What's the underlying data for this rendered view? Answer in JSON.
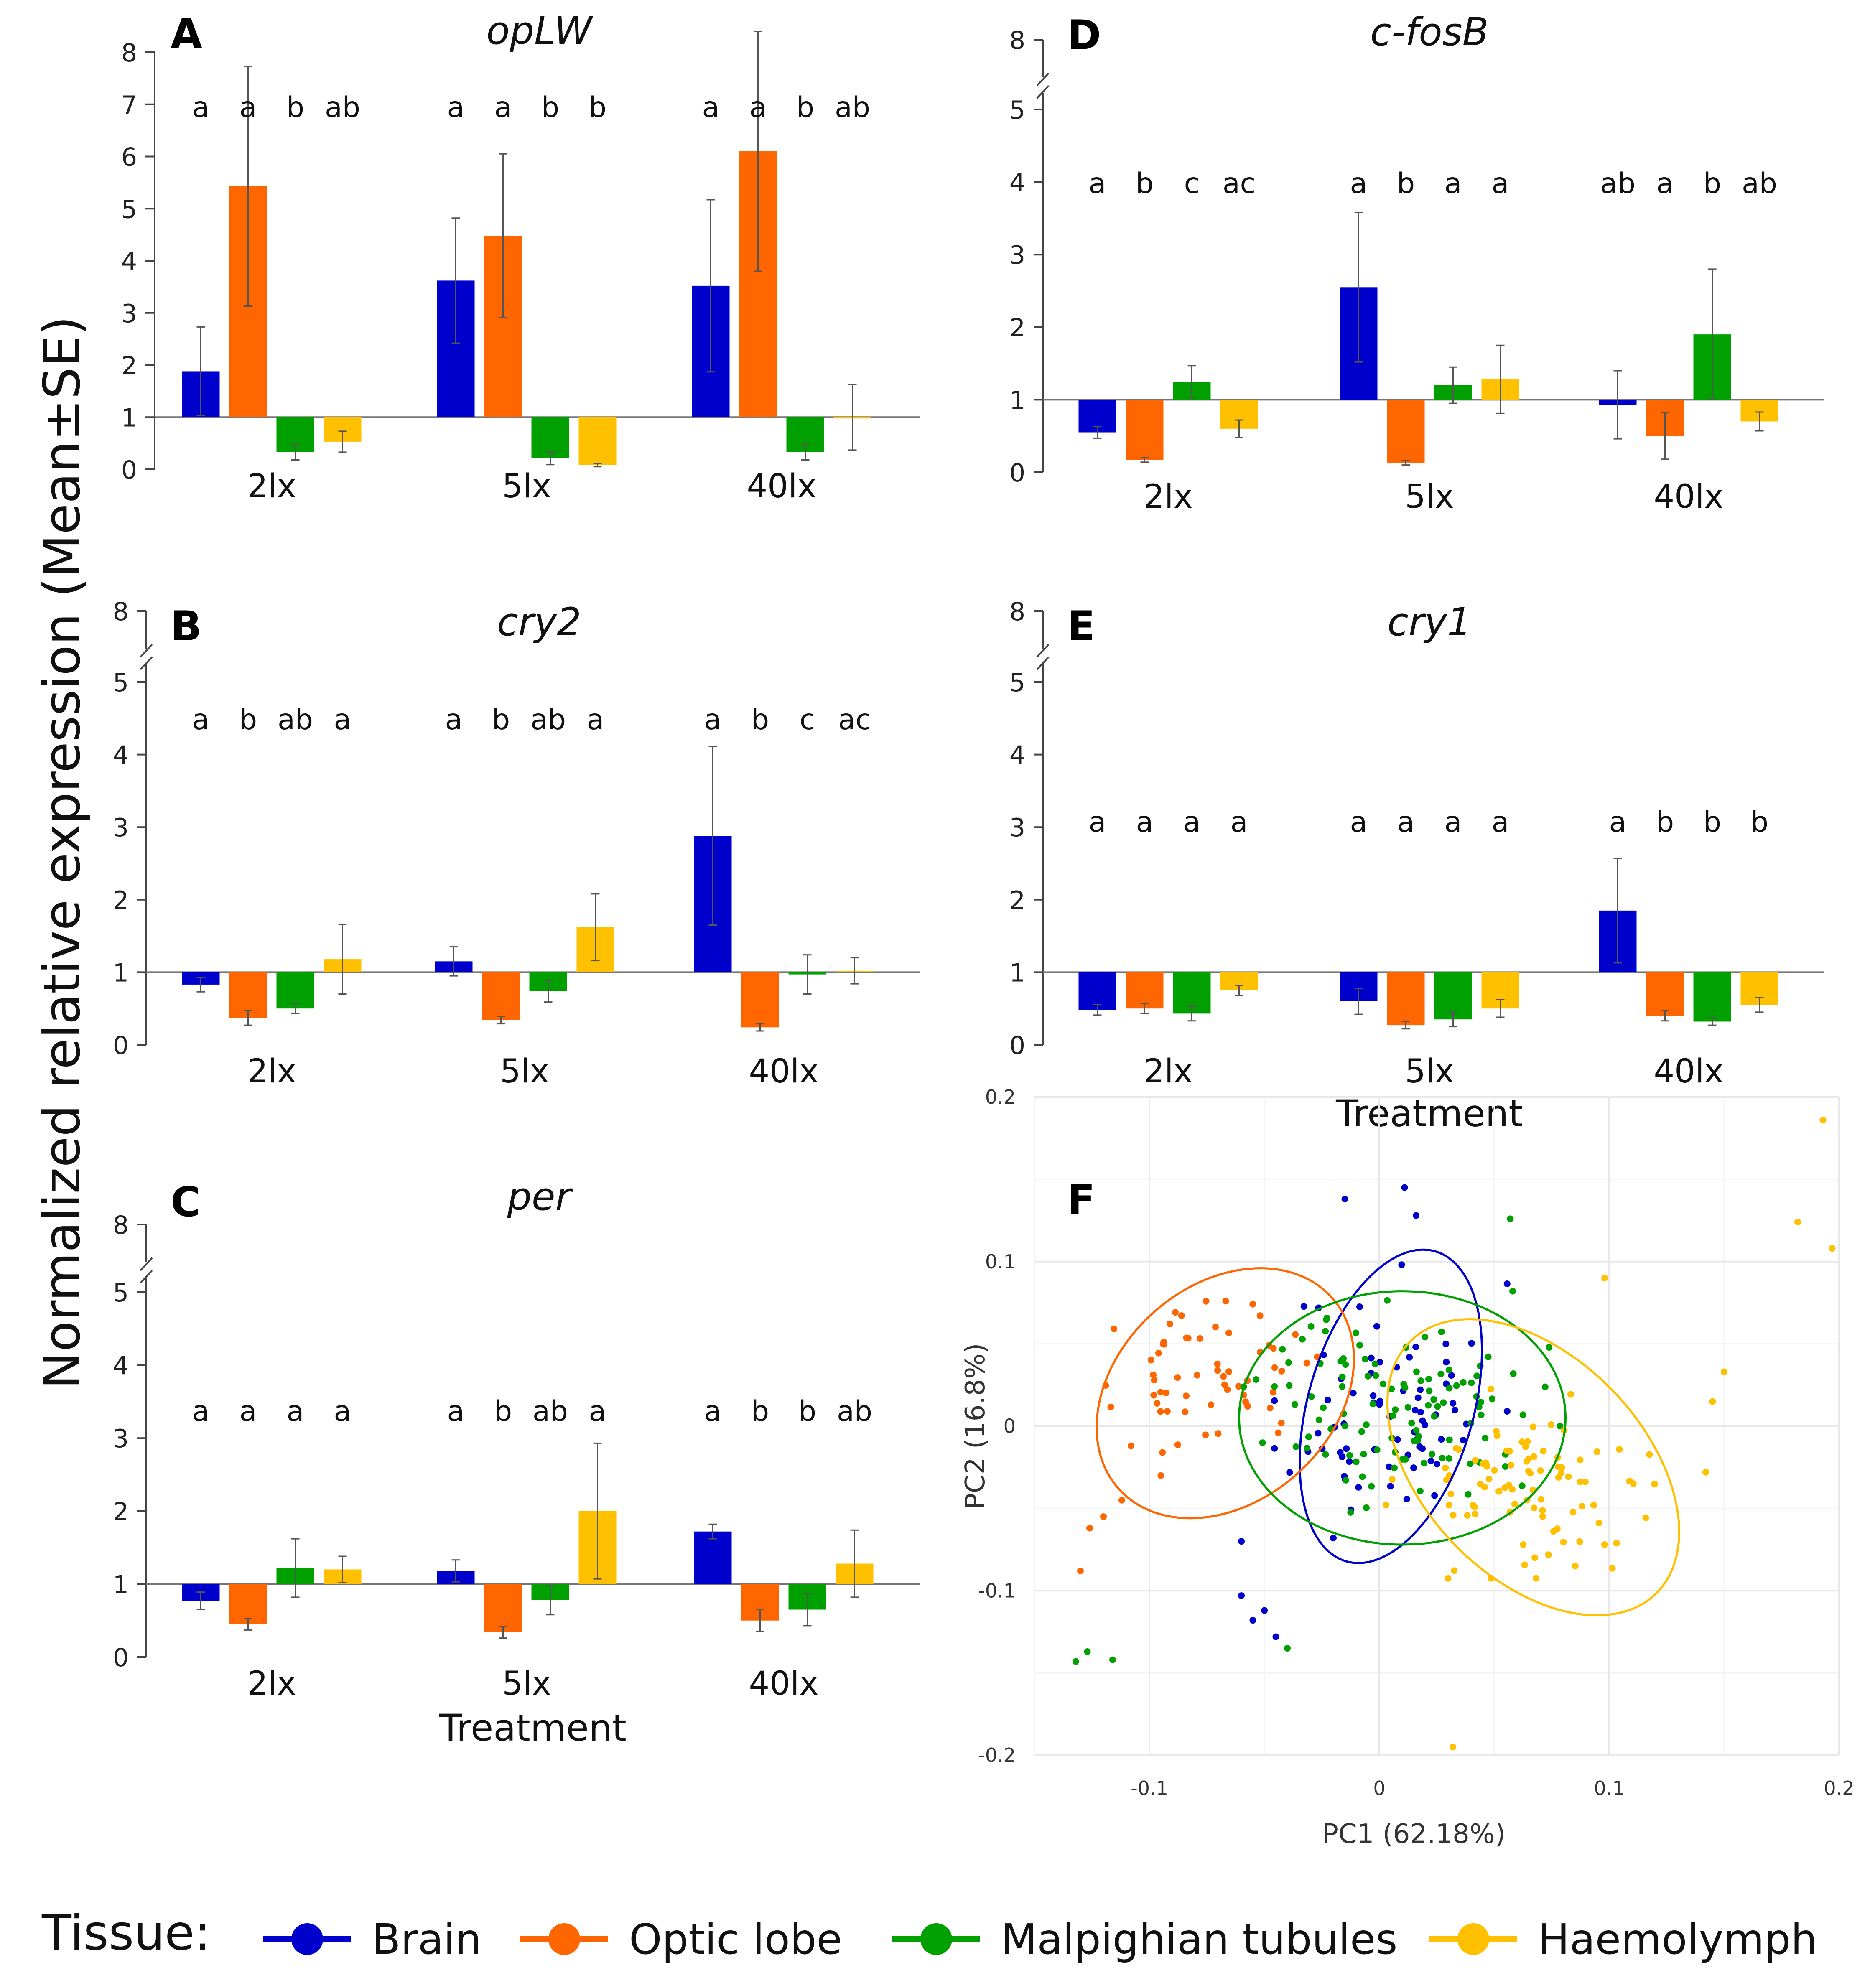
{
  "colors": {
    "Brain": "#0000cc",
    "Optic lobe": "#ff6600",
    "Malpighian tubules": "#00a000",
    "Haemolymph": "#ffc000"
  },
  "y_axis_title": "Normalized relative expression (Mean±SE)",
  "x_axis_title": "Treatment",
  "legend": {
    "title": "Tissue:",
    "items": [
      "Brain",
      "Optic lobe",
      "Malpighian tubules",
      "Haemolymph"
    ]
  },
  "chart_data": [
    {
      "type": "bar",
      "panel": "A",
      "gene": "opLW",
      "categories": [
        "2lx",
        "5lx",
        "40lx"
      ],
      "baseline": 1,
      "ylim": [
        0,
        8
      ],
      "yticks": [
        0,
        1,
        2,
        3,
        4,
        5,
        6,
        7,
        8
      ],
      "axis_break": false,
      "series": [
        {
          "name": "Brain",
          "values": [
            1.88,
            3.62,
            3.52
          ],
          "err": [
            0.85,
            1.2,
            1.65
          ]
        },
        {
          "name": "Optic lobe",
          "values": [
            5.43,
            4.48,
            6.1
          ],
          "err": [
            2.3,
            1.57,
            2.3
          ]
        },
        {
          "name": "Malpighian tubules",
          "values": [
            0.33,
            0.21,
            0.33
          ],
          "err": [
            0.15,
            0.12,
            0.15
          ]
        },
        {
          "name": "Haemolymph",
          "values": [
            0.53,
            0.08,
            1.0
          ],
          "err": [
            0.2,
            0.03,
            0.63
          ]
        }
      ],
      "letters": [
        [
          "a",
          "a",
          "b",
          "ab"
        ],
        [
          "a",
          "a",
          "b",
          "b"
        ],
        [
          "a",
          "a",
          "b",
          "ab"
        ]
      ]
    },
    {
      "type": "bar",
      "panel": "B",
      "gene": "cry2",
      "categories": [
        "2lx",
        "5lx",
        "40lx"
      ],
      "baseline": 1,
      "ylim": [
        0,
        5
      ],
      "yticks": [
        0,
        1,
        2,
        3,
        4,
        5
      ],
      "axis_break": true,
      "break_label": "8",
      "series": [
        {
          "name": "Brain",
          "values": [
            0.83,
            1.15,
            2.88
          ],
          "err": [
            0.1,
            0.2,
            1.23
          ]
        },
        {
          "name": "Optic lobe",
          "values": [
            0.37,
            0.34,
            0.24
          ],
          "err": [
            0.1,
            0.05,
            0.05
          ]
        },
        {
          "name": "Malpighian tubules",
          "values": [
            0.5,
            0.74,
            0.97
          ],
          "err": [
            0.07,
            0.15,
            0.27
          ]
        },
        {
          "name": "Haemolymph",
          "values": [
            1.18,
            1.62,
            1.02
          ],
          "err": [
            0.48,
            0.46,
            0.18
          ]
        }
      ],
      "letters": [
        [
          "a",
          "b",
          "ab",
          "a"
        ],
        [
          "a",
          "b",
          "ab",
          "a"
        ],
        [
          "a",
          "b",
          "c",
          "ac"
        ]
      ]
    },
    {
      "type": "bar",
      "panel": "C",
      "gene": "per",
      "categories": [
        "2lx",
        "5lx",
        "40lx"
      ],
      "baseline": 1,
      "ylim": [
        0,
        5
      ],
      "yticks": [
        0,
        1,
        2,
        3,
        4,
        5
      ],
      "axis_break": true,
      "break_label": "8",
      "series": [
        {
          "name": "Brain",
          "values": [
            0.77,
            1.18,
            1.72
          ],
          "err": [
            0.12,
            0.15,
            0.1
          ]
        },
        {
          "name": "Optic lobe",
          "values": [
            0.45,
            0.34,
            0.5
          ],
          "err": [
            0.08,
            0.08,
            0.15
          ]
        },
        {
          "name": "Malpighian tubules",
          "values": [
            1.22,
            0.78,
            0.65
          ],
          "err": [
            0.4,
            0.2,
            0.22
          ]
        },
        {
          "name": "Haemolymph",
          "values": [
            1.2,
            2.0,
            1.28
          ],
          "err": [
            0.18,
            0.93,
            0.46
          ]
        }
      ],
      "letters": [
        [
          "a",
          "a",
          "a",
          "a"
        ],
        [
          "a",
          "b",
          "ab",
          "a"
        ],
        [
          "a",
          "b",
          "b",
          "ab"
        ]
      ]
    },
    {
      "type": "bar",
      "panel": "D",
      "gene": "c-fosB",
      "categories": [
        "2lx",
        "5lx",
        "40lx"
      ],
      "baseline": 1,
      "ylim": [
        0,
        5
      ],
      "yticks": [
        0,
        1,
        2,
        3,
        4,
        5
      ],
      "axis_break": true,
      "break_label": "8",
      "series": [
        {
          "name": "Brain",
          "values": [
            0.55,
            2.55,
            0.93
          ],
          "err": [
            0.08,
            1.03,
            0.47
          ]
        },
        {
          "name": "Optic lobe",
          "values": [
            0.17,
            0.13,
            0.5
          ],
          "err": [
            0.03,
            0.03,
            0.32
          ]
        },
        {
          "name": "Malpighian tubules",
          "values": [
            1.25,
            1.2,
            1.9
          ],
          "err": [
            0.22,
            0.25,
            0.9
          ]
        },
        {
          "name": "Haemolymph",
          "values": [
            0.6,
            1.28,
            0.7
          ],
          "err": [
            0.12,
            0.47,
            0.13
          ]
        }
      ],
      "letters": [
        [
          "a",
          "b",
          "c",
          "ac"
        ],
        [
          "a",
          "b",
          "a",
          "a"
        ],
        [
          "ab",
          "a",
          "b",
          "ab"
        ]
      ]
    },
    {
      "type": "bar",
      "panel": "E",
      "gene": "cry1",
      "categories": [
        "2lx",
        "5lx",
        "40lx"
      ],
      "baseline": 1,
      "ylim": [
        0,
        5
      ],
      "yticks": [
        0,
        1,
        2,
        3,
        4,
        5
      ],
      "axis_break": true,
      "break_label": "8",
      "series": [
        {
          "name": "Brain",
          "values": [
            0.48,
            0.6,
            1.85
          ],
          "err": [
            0.07,
            0.18,
            0.72
          ]
        },
        {
          "name": "Optic lobe",
          "values": [
            0.5,
            0.27,
            0.4
          ],
          "err": [
            0.07,
            0.05,
            0.07
          ]
        },
        {
          "name": "Malpighian tubules",
          "values": [
            0.43,
            0.35,
            0.32
          ],
          "err": [
            0.1,
            0.1,
            0.05
          ]
        },
        {
          "name": "Haemolymph",
          "values": [
            0.75,
            0.5,
            0.55
          ],
          "err": [
            0.07,
            0.12,
            0.1
          ]
        }
      ],
      "letters": [
        [
          "a",
          "a",
          "a",
          "a"
        ],
        [
          "a",
          "a",
          "a",
          "a"
        ],
        [
          "a",
          "b",
          "b",
          "b"
        ]
      ]
    },
    {
      "type": "scatter",
      "panel": "F",
      "xlabel": "PC1 (62.18%)",
      "ylabel": "PC2 (16.8%)",
      "xlim": [
        -0.15,
        0.2
      ],
      "ylim": [
        -0.2,
        0.2
      ],
      "xticks": [
        -0.1,
        0,
        0.1,
        0.2
      ],
      "yticks": [
        -0.2,
        -0.1,
        0,
        0.1,
        0.2
      ],
      "groups": [
        {
          "name": "Brain",
          "center": [
            0.005,
            0.013
          ],
          "sd": [
            0.022,
            0.037
          ],
          "n": 70,
          "seed": 11,
          "extra": [
            [
              -0.015,
              0.138
            ],
            [
              0.011,
              0.145
            ],
            [
              0.016,
              0.128
            ],
            [
              -0.06,
              -0.103
            ],
            [
              -0.055,
              -0.118
            ],
            [
              -0.045,
              -0.128
            ],
            [
              -0.05,
              -0.112
            ],
            [
              -0.02,
              -0.068
            ],
            [
              -0.06,
              -0.07
            ]
          ],
          "ellipse": {
            "cx": 0.005,
            "cy": 0.012,
            "rx": 0.036,
            "ry": 0.098,
            "rot": 16
          }
        },
        {
          "name": "Optic lobe",
          "center": [
            -0.073,
            0.03
          ],
          "sd": [
            0.02,
            0.02
          ],
          "n": 60,
          "seed": 23,
          "extra": [
            [
              -0.13,
              -0.088
            ],
            [
              -0.112,
              -0.045
            ],
            [
              -0.12,
              -0.055
            ],
            [
              -0.126,
              -0.062
            ],
            [
              -0.095,
              -0.03
            ],
            [
              -0.108,
              -0.012
            ]
          ],
          "ellipse": {
            "cx": -0.067,
            "cy": 0.02,
            "rx": 0.047,
            "ry": 0.087,
            "rot": 48
          }
        },
        {
          "name": "Malpighian tubules",
          "center": [
            0.01,
            0.012
          ],
          "sd": [
            0.03,
            0.028
          ],
          "n": 110,
          "seed": 37,
          "extra": [
            [
              -0.132,
              -0.143
            ],
            [
              -0.127,
              -0.137
            ],
            [
              -0.116,
              -0.142
            ],
            [
              -0.04,
              -0.135
            ],
            [
              0.057,
              0.126
            ],
            [
              0.058,
              0.082
            ]
          ],
          "ellipse": {
            "cx": 0.01,
            "cy": 0.005,
            "rx": 0.071,
            "ry": 0.077,
            "rot": 0
          }
        },
        {
          "name": "Haemolymph",
          "center": [
            0.065,
            -0.035
          ],
          "sd": [
            0.027,
            0.025
          ],
          "n": 90,
          "seed": 53,
          "extra": [
            [
              0.193,
              0.186
            ],
            [
              0.182,
              0.124
            ],
            [
              0.197,
              0.108
            ],
            [
              0.142,
              -0.028
            ],
            [
              0.15,
              0.033
            ],
            [
              0.145,
              0.015
            ],
            [
              0.032,
              -0.195
            ],
            [
              0.098,
              0.09
            ],
            [
              0.098,
              -0.072
            ]
          ],
          "ellipse": {
            "cx": 0.067,
            "cy": -0.025,
            "rx": 0.048,
            "ry": 0.107,
            "rot": -44
          }
        }
      ]
    }
  ]
}
